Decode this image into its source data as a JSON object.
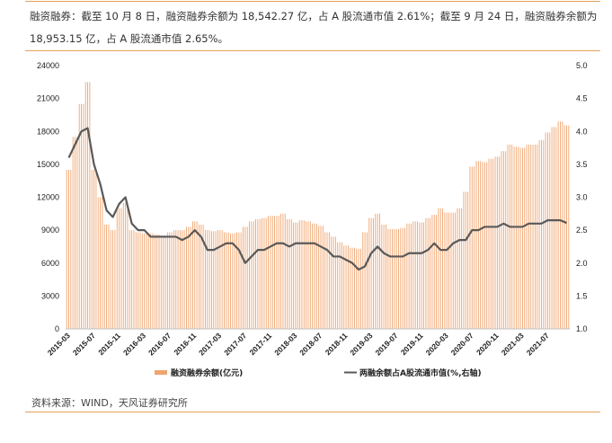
{
  "header": {
    "text": "融资融券：截至 10 月 8 日，融资融券余额为 18,542.27 亿，占 A 股流通市值 2.61%；截至 9 月 24 日，融资融券余额为 18,953.15 亿，占 A 股流通市值 2.65%。"
  },
  "footer": {
    "source": "资料来源：WIND，天风证券研究所"
  },
  "colors": {
    "bar": "#f0a46e",
    "line": "#595959",
    "rule": "#e6a15a"
  },
  "chart_data": {
    "type": "bar+line",
    "title": "",
    "left_axis": {
      "min": 0,
      "max": 24000,
      "ticks": [
        "0",
        "3000",
        "6000",
        "9000",
        "12000",
        "15000",
        "18000",
        "21000",
        "24000"
      ]
    },
    "right_axis": {
      "min": 1.0,
      "max": 5.0,
      "ticks": [
        "1.0",
        "1.5",
        "2.0",
        "2.5",
        "3.0",
        "3.5",
        "4.0",
        "4.5",
        "5.0"
      ]
    },
    "x_ticks": [
      "2015-03",
      "2015-07",
      "2015-11",
      "2016-03",
      "2016-07",
      "2016-11",
      "2017-03",
      "2017-07",
      "2017-11",
      "2018-03",
      "2018-07",
      "2018-11",
      "2019-03",
      "2019-07",
      "2019-11",
      "2020-03",
      "2020-07",
      "2020-11",
      "2021-03",
      "2021-07"
    ],
    "months": [
      "2015-03",
      "2015-04",
      "2015-05",
      "2015-06",
      "2015-07",
      "2015-08",
      "2015-09",
      "2015-10",
      "2015-11",
      "2015-12",
      "2016-01",
      "2016-02",
      "2016-03",
      "2016-04",
      "2016-05",
      "2016-06",
      "2016-07",
      "2016-08",
      "2016-09",
      "2016-10",
      "2016-11",
      "2016-12",
      "2017-01",
      "2017-02",
      "2017-03",
      "2017-04",
      "2017-05",
      "2017-06",
      "2017-07",
      "2017-08",
      "2017-09",
      "2017-10",
      "2017-11",
      "2017-12",
      "2018-01",
      "2018-02",
      "2018-03",
      "2018-04",
      "2018-05",
      "2018-06",
      "2018-07",
      "2018-08",
      "2018-09",
      "2018-10",
      "2018-11",
      "2018-12",
      "2019-01",
      "2019-02",
      "2019-03",
      "2019-04",
      "2019-05",
      "2019-06",
      "2019-07",
      "2019-08",
      "2019-09",
      "2019-10",
      "2019-11",
      "2019-12",
      "2020-01",
      "2020-02",
      "2020-03",
      "2020-04",
      "2020-05",
      "2020-06",
      "2020-07",
      "2020-08",
      "2020-09",
      "2020-10",
      "2020-11",
      "2020-12",
      "2021-01",
      "2021-02",
      "2021-03",
      "2021-04",
      "2021-05",
      "2021-06",
      "2021-07",
      "2021-08",
      "2021-09",
      "2021-10"
    ],
    "series": [
      {
        "name": "融资融券余额(亿元)",
        "type": "bar",
        "axis": "left",
        "values": [
          14500,
          17500,
          20500,
          22500,
          14500,
          12000,
          9500,
          9000,
          11000,
          11500,
          9000,
          8800,
          8700,
          8700,
          8600,
          8500,
          8800,
          9000,
          9000,
          9300,
          9800,
          9500,
          9000,
          8900,
          9000,
          8800,
          8700,
          8800,
          9300,
          9800,
          10000,
          10100,
          10300,
          10300,
          10500,
          10000,
          9700,
          9900,
          9800,
          9600,
          9400,
          8800,
          8400,
          7900,
          7600,
          7400,
          7300,
          8800,
          10100,
          10500,
          9500,
          9100,
          9100,
          9200,
          9600,
          9800,
          9700,
          10100,
          10400,
          11000,
          10600,
          10600,
          11000,
          12500,
          14800,
          15300,
          15200,
          15500,
          15700,
          16200,
          16800,
          16600,
          16500,
          16800,
          16800,
          17200,
          17900,
          18400,
          18900,
          18542
        ]
      },
      {
        "name": "两融余额占A股流通市值(%,右轴)",
        "type": "line",
        "axis": "right",
        "values": [
          3.6,
          3.8,
          4.0,
          4.05,
          3.5,
          3.2,
          2.8,
          2.7,
          2.9,
          3.0,
          2.6,
          2.5,
          2.5,
          2.4,
          2.4,
          2.4,
          2.4,
          2.4,
          2.35,
          2.4,
          2.5,
          2.4,
          2.2,
          2.2,
          2.25,
          2.3,
          2.3,
          2.2,
          2.0,
          2.1,
          2.2,
          2.2,
          2.25,
          2.3,
          2.3,
          2.25,
          2.3,
          2.3,
          2.3,
          2.3,
          2.25,
          2.2,
          2.1,
          2.1,
          2.05,
          2.0,
          1.9,
          1.95,
          2.15,
          2.25,
          2.15,
          2.1,
          2.1,
          2.1,
          2.15,
          2.15,
          2.15,
          2.2,
          2.3,
          2.2,
          2.2,
          2.3,
          2.35,
          2.35,
          2.5,
          2.5,
          2.55,
          2.55,
          2.55,
          2.6,
          2.55,
          2.55,
          2.55,
          2.6,
          2.6,
          2.6,
          2.65,
          2.65,
          2.65,
          2.61
        ]
      }
    ],
    "legend_position": "bottom",
    "grid": false
  }
}
